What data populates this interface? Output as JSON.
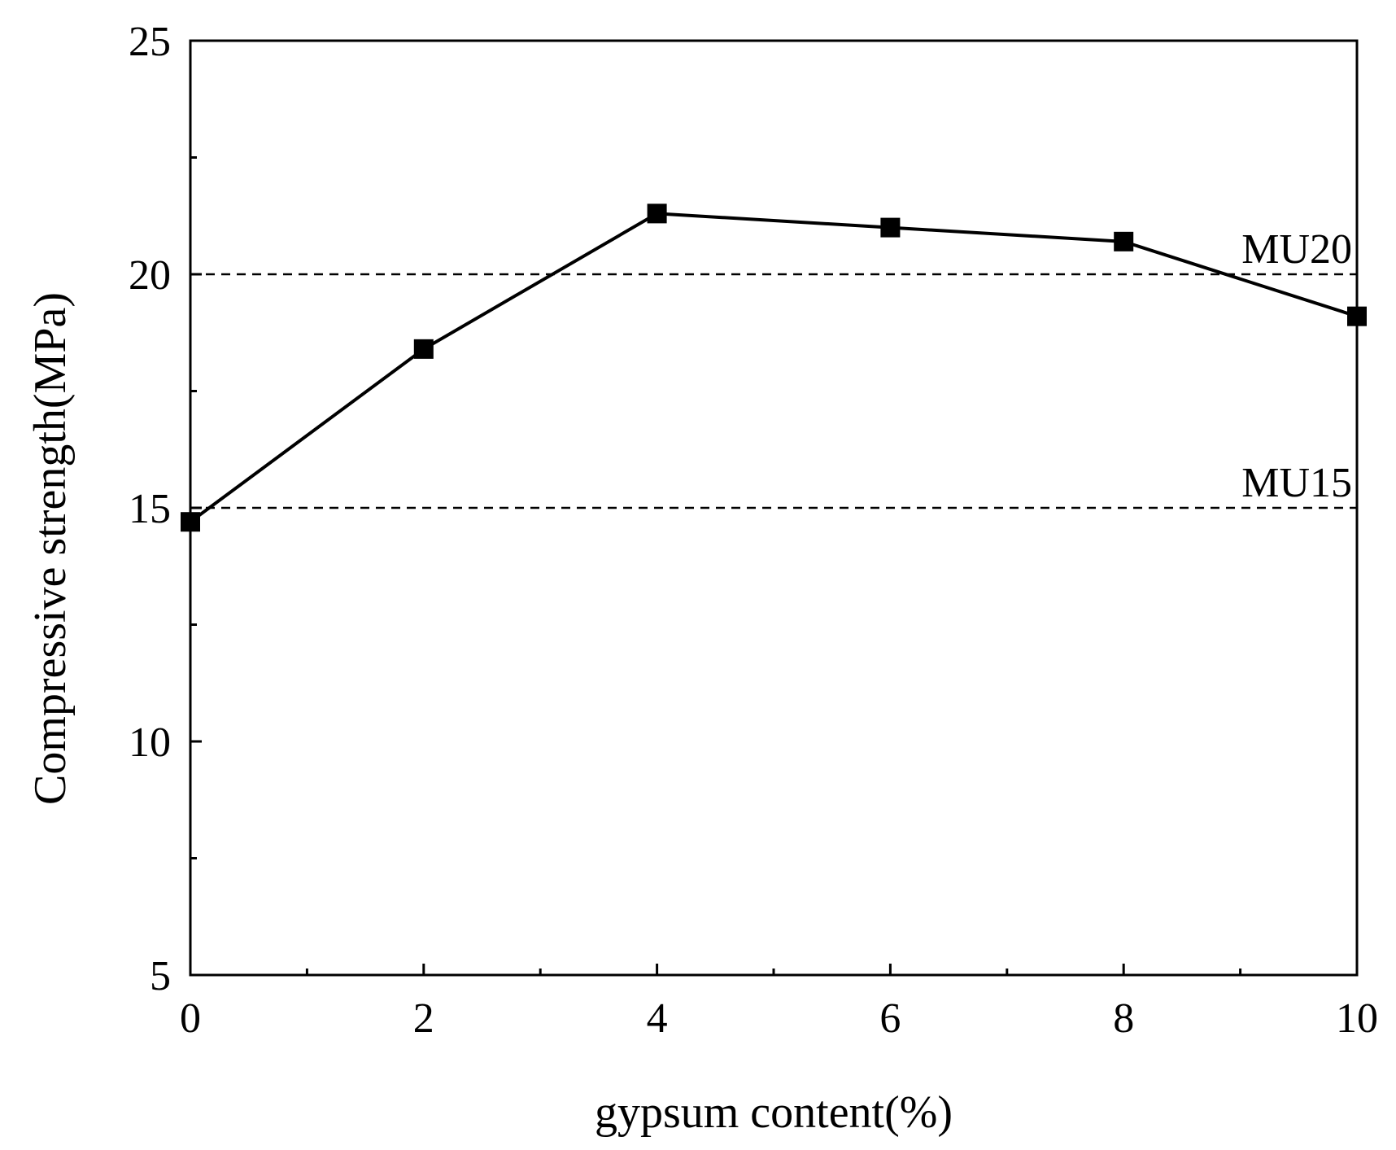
{
  "chart_data": {
    "type": "line",
    "title": "",
    "xlabel": "gypsum content(%)",
    "ylabel": "Compressive strength(MPa)",
    "xlim": [
      0,
      10
    ],
    "ylim": [
      5,
      25
    ],
    "x_ticks": [
      "0",
      "2",
      "4",
      "6",
      "8",
      "10"
    ],
    "y_ticks": [
      "5",
      "10",
      "15",
      "20",
      "25"
    ],
    "x_minor_ticks": [
      1,
      3,
      5,
      7,
      9
    ],
    "y_minor_ticks": [
      7.5,
      12.5,
      17.5,
      22.5
    ],
    "grid": false,
    "series": [
      {
        "marker": "square",
        "color": "#000000",
        "x": [
          0,
          2,
          4,
          6,
          8,
          10
        ],
        "y": [
          14.7,
          18.4,
          21.3,
          21.0,
          20.7,
          19.1
        ]
      }
    ],
    "reference_lines": [
      {
        "label": "MU20",
        "y": 20,
        "style": "dashed"
      },
      {
        "label": "MU15",
        "y": 15,
        "style": "dashed"
      }
    ]
  }
}
